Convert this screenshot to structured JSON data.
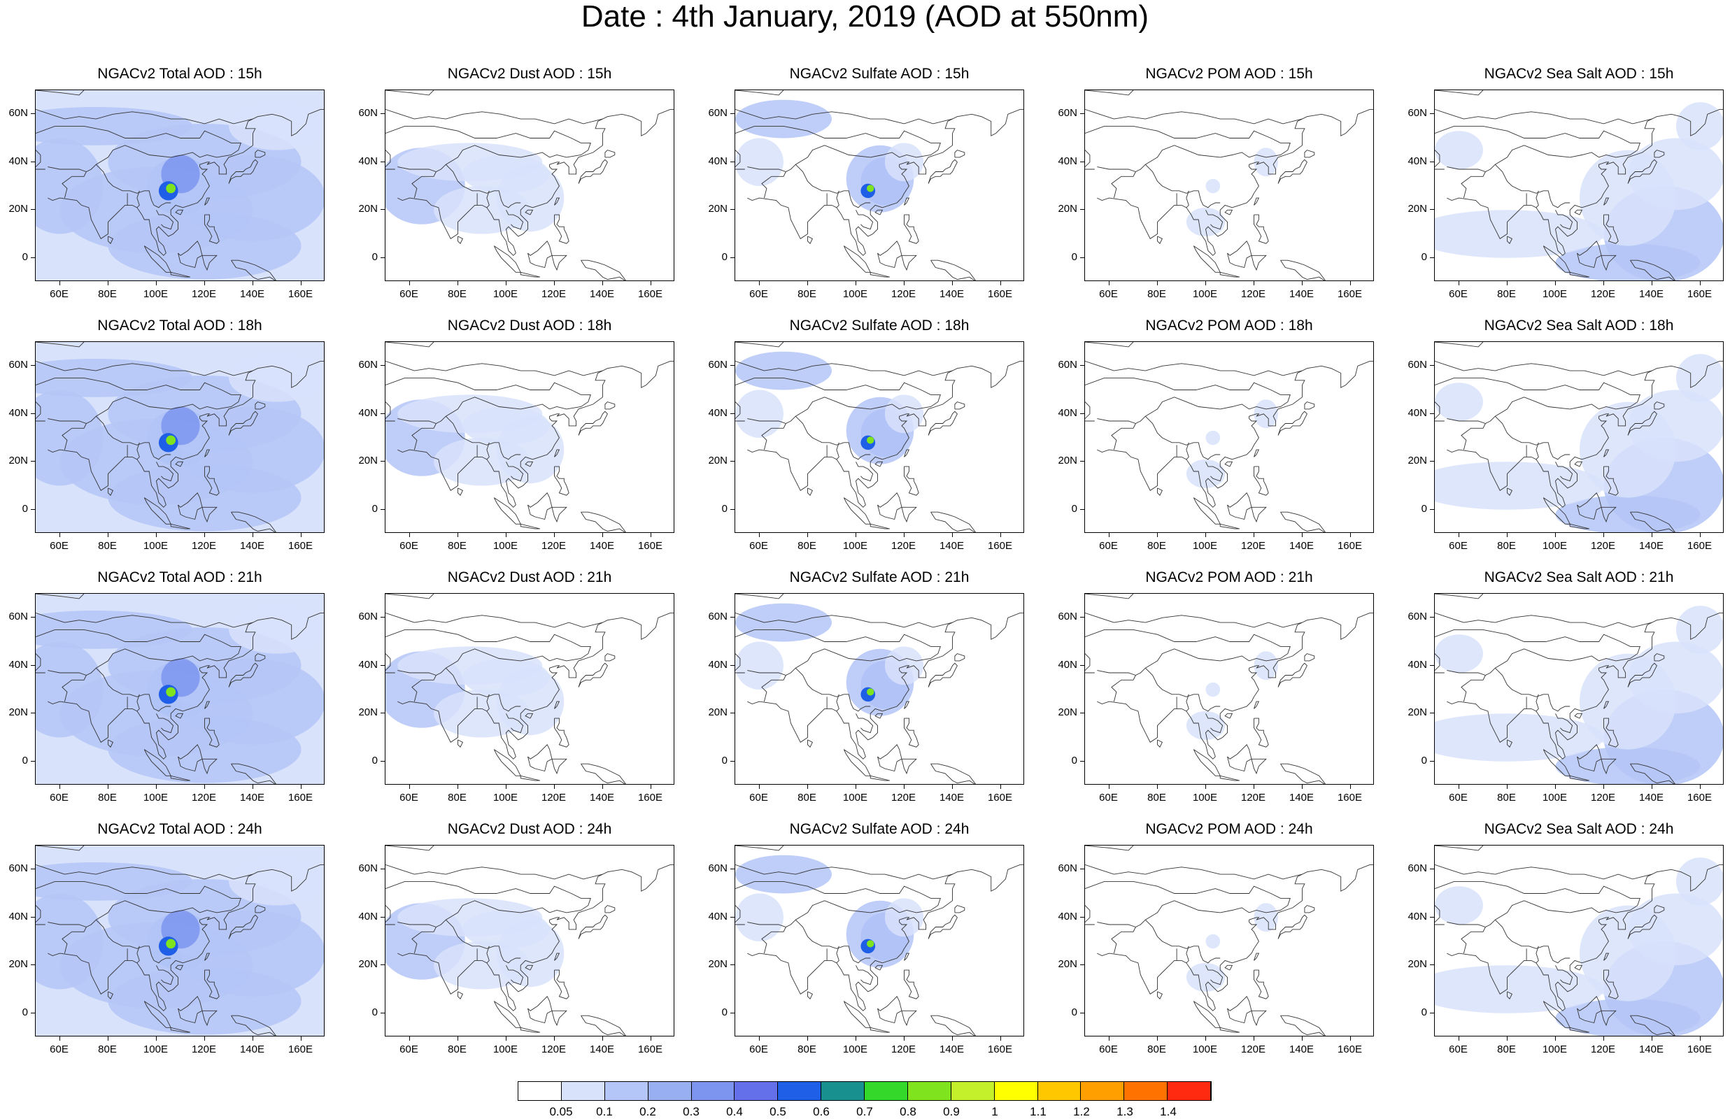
{
  "title": "Date : 4th January, 2019 (AOD at 550nm)",
  "lon_ticks": [
    "60E",
    "80E",
    "100E",
    "120E",
    "140E",
    "160E"
  ],
  "lat_ticks": [
    "60N",
    "40N",
    "20N",
    "0"
  ],
  "panels": [
    [
      "NGACv2 Total AOD : 15h",
      "NGACv2 Dust AOD : 15h",
      "NGACv2 Sulfate AOD : 15h",
      "NGACv2 POM AOD : 15h",
      "NGACv2 Sea Salt AOD : 15h"
    ],
    [
      "NGACv2 Total AOD : 18h",
      "NGACv2 Dust AOD : 18h",
      "NGACv2 Sulfate AOD : 18h",
      "NGACv2 POM AOD : 18h",
      "NGACv2 Sea Salt AOD : 18h"
    ],
    [
      "NGACv2 Total AOD : 21h",
      "NGACv2 Dust AOD : 21h",
      "NGACv2 Sulfate AOD : 21h",
      "NGACv2 POM AOD : 21h",
      "NGACv2 Sea Salt AOD : 21h"
    ],
    [
      "NGACv2 Total AOD : 24h",
      "NGACv2 Dust AOD : 24h",
      "NGACv2 Sulfate AOD : 24h",
      "NGACv2 POM AOD : 24h",
      "NGACv2 Sea Salt  AOD : 24h"
    ]
  ],
  "colorbar": {
    "labels": [
      "0.05",
      "0.1",
      "0.2",
      "0.3",
      "0.4",
      "0.5",
      "0.6",
      "0.7",
      "0.8",
      "0.9",
      "1",
      "1.1",
      "1.2",
      "1.3",
      "1.4"
    ],
    "colors": [
      "#ffffff",
      "#d8e2fb",
      "#b4c6f7",
      "#98b0f2",
      "#7d95ee",
      "#6470ea",
      "#1f5fe8",
      "#189090",
      "#34d82a",
      "#7fe31e",
      "#c3f02a",
      "#ffff00",
      "#ffc700",
      "#ff9f00",
      "#ff7200",
      "#ff2a10"
    ]
  },
  "chart_data": {
    "type": "heatmap",
    "title": "Date : 4th January, 2019 (AOD at 550nm)",
    "variables": [
      "Total AOD",
      "Dust AOD",
      "Sulfate AOD",
      "POM AOD",
      "Sea Salt AOD"
    ],
    "times": [
      "15h",
      "18h",
      "21h",
      "24h"
    ],
    "lon_range": [
      50,
      170
    ],
    "lat_range": [
      -10,
      70
    ],
    "levels": [
      0.05,
      0.1,
      0.2,
      0.3,
      0.4,
      0.5,
      0.6,
      0.7,
      0.8,
      0.9,
      1,
      1.1,
      1.2,
      1.3,
      1.4
    ]
  }
}
